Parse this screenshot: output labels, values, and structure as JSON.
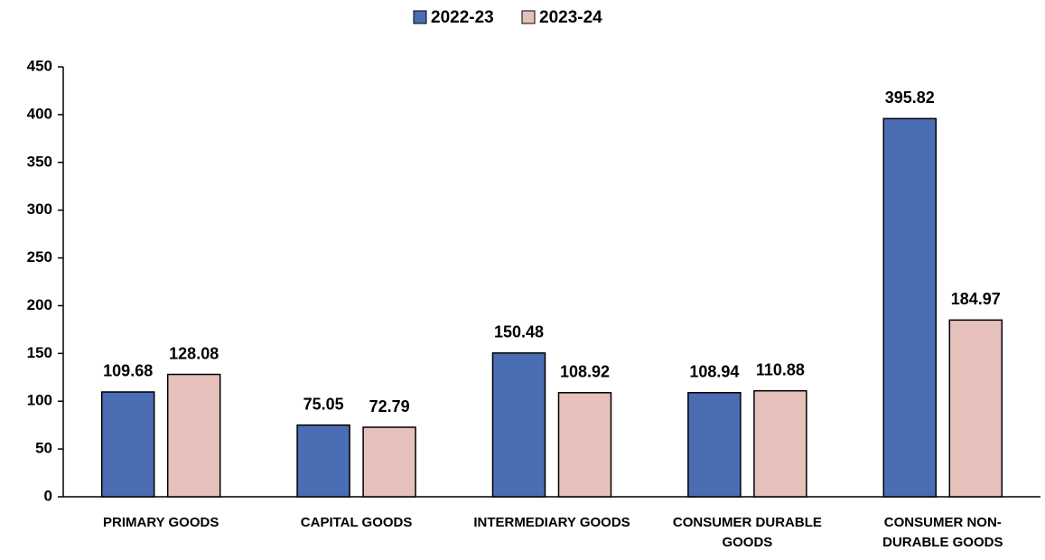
{
  "chart_data": {
    "type": "bar",
    "categories": [
      "PRIMARY GOODS",
      "CAPITAL GOODS",
      "INTERMEDIARY GOODS",
      "CONSUMER DURABLE GOODS",
      "CONSUMER NON-DURABLE GOODS"
    ],
    "series": [
      {
        "name": "2022-23",
        "color": "#4a6db3",
        "values": [
          109.68,
          75.05,
          150.48,
          108.94,
          395.82
        ]
      },
      {
        "name": "2023-24",
        "color": "#e6c0bb",
        "values": [
          128.08,
          72.79,
          108.92,
          110.88,
          184.97
        ]
      }
    ],
    "ylim": [
      0,
      450
    ],
    "yticks": [
      0,
      50,
      100,
      150,
      200,
      250,
      300,
      350,
      400,
      450
    ],
    "legend": "top"
  }
}
